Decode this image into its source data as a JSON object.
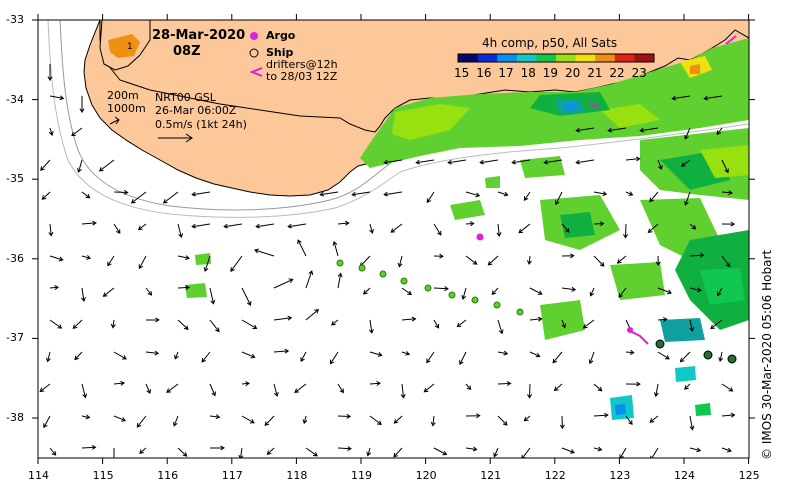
{
  "title": {
    "date": "28-Mar-2020",
    "time": "08Z"
  },
  "legend": {
    "argo": "Argo",
    "ship": "Ship",
    "drifters_line1": "drifters@12h",
    "drifters_line2": "to 28/03 12Z"
  },
  "annotations": {
    "depth_200": "200m",
    "depth_1000": "1000m",
    "analysis": "NRT00 GSL",
    "analysis_time": "26-Mar 06:00Z",
    "scale": "0.5m/s (1kt 24h)"
  },
  "colorbar": {
    "title": "4h comp, p50, All Sats",
    "ticks": [
      "15",
      "16",
      "17",
      "18",
      "19",
      "20",
      "21",
      "22",
      "23"
    ],
    "colors": [
      "#08086a",
      "#0a2ad8",
      "#0a8ef0",
      "#10c8c8",
      "#10c850",
      "#98e010",
      "#f0e010",
      "#f09010",
      "#e02010",
      "#a01010"
    ]
  },
  "axes": {
    "lat_labels": [
      "-33",
      "-34",
      "-35",
      "-36",
      "-37",
      "-38"
    ],
    "lon_labels": [
      "114",
      "115",
      "116",
      "117",
      "118",
      "119",
      "120",
      "121",
      "122",
      "123",
      "124",
      "125"
    ]
  },
  "credit": "© IMOS 30-Mar-2020 05:06 Hobart",
  "island_label": "1",
  "colors": {
    "land": "#fcc89a",
    "argo": "#e020e0",
    "ship": "#205020",
    "drifter": "#60d020"
  }
}
